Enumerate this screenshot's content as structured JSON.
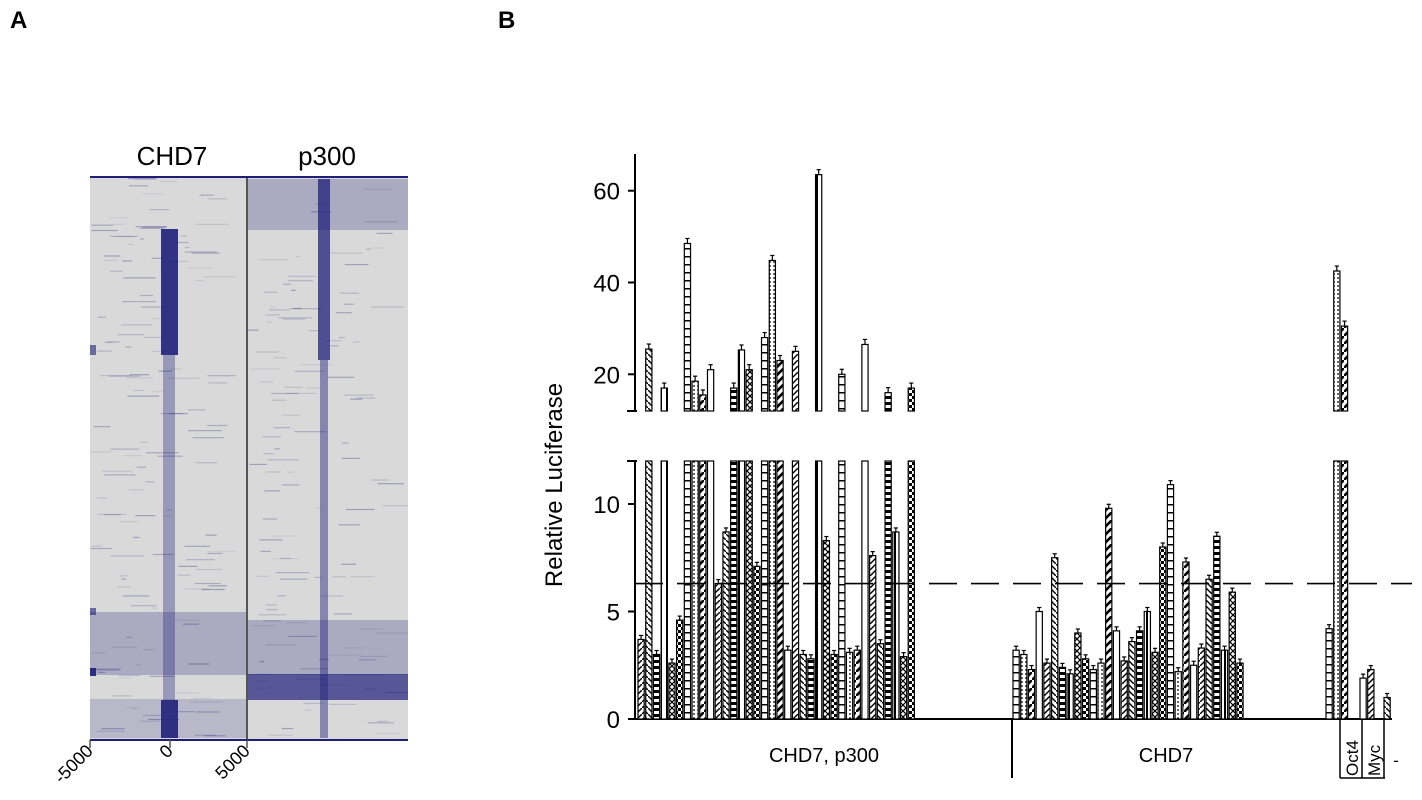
{
  "panel_a": {
    "label": "A",
    "column_labels": [
      "CHD7",
      "p300"
    ],
    "x_ticks": [
      "-5000",
      "0",
      "5000"
    ],
    "colors": {
      "background": "#d9d9d9",
      "signal": "#1f1f7a"
    }
  },
  "panel_b": {
    "label": "B"
  },
  "chart_data": {
    "type": "bar",
    "ylabel": "Relative Luciferase",
    "y_ticks_upper": [
      "20",
      "40",
      "60"
    ],
    "y_ticks_lower": [
      "0",
      "5",
      "10"
    ],
    "ylim_lower": [
      0,
      12
    ],
    "ylim_upper": [
      12,
      68
    ],
    "axis_break_between": [
      12,
      13
    ],
    "threshold": 6.3,
    "group_labels": [
      "CHD7, p300",
      "CHD7",
      "Oct4",
      "Myc",
      "-"
    ],
    "groups": [
      {
        "name": "CHD7, p300",
        "values": [
          3.7,
          25.5,
          3.0,
          17.0,
          2.6,
          4.6,
          48.5,
          18.5,
          15.5,
          21.0,
          6.3,
          8.7,
          17.0,
          25.3,
          21.0,
          7.1,
          28.0,
          44.8,
          23.0,
          3.2,
          25.0,
          3.0,
          2.8,
          63.5,
          8.3,
          3.0,
          20.0,
          3.1,
          3.2,
          26.5,
          7.6,
          3.5,
          16.0,
          8.7,
          2.9,
          17.0
        ]
      },
      {
        "name": "CHD7",
        "values": [
          3.2,
          3.0,
          2.3,
          5.0,
          2.6,
          7.5,
          2.4,
          2.1,
          4.0,
          2.8,
          2.3,
          2.6,
          9.8,
          4.1,
          2.7,
          3.6,
          4.1,
          5.0,
          3.1,
          8.0,
          10.9,
          2.2,
          7.3,
          2.5,
          3.3,
          6.5,
          8.5,
          3.2,
          5.9,
          2.6
        ]
      },
      {
        "name": "Oct4",
        "values": [
          4.2,
          42.5,
          30.5
        ]
      },
      {
        "name": "Myc",
        "values": [
          1.9,
          2.3
        ]
      },
      {
        "name": "-",
        "values": [
          1.0
        ]
      }
    ],
    "colors": {
      "bar_fill": "#ffffff",
      "bar_stroke": "#000000",
      "pattern": "#000000"
    }
  }
}
